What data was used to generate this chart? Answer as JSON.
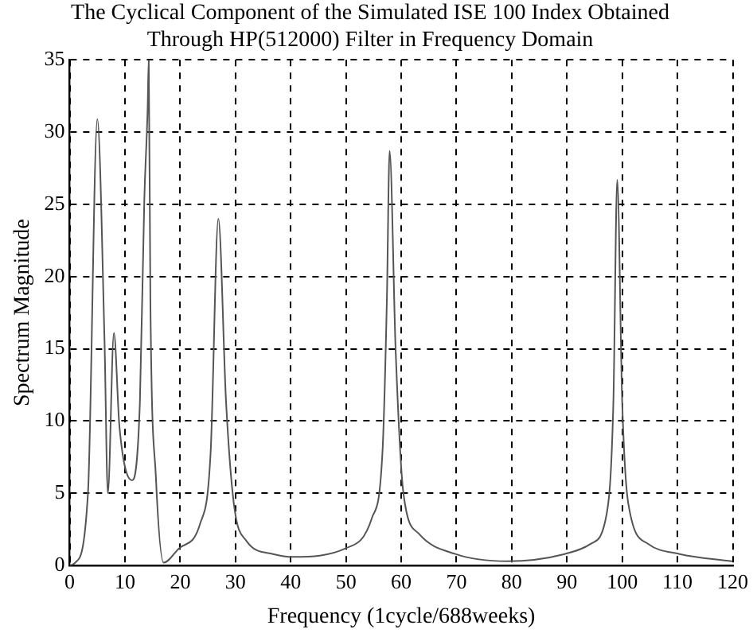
{
  "chart_data": {
    "type": "line",
    "title": "The Cyclical Component of the Simulated ISE 100 Index Obtained\nThrough HP(512000) Filter in Frequency Domain",
    "xlabel": "Frequency (1cycle/688weeks)",
    "ylabel": "Spectrum Magnitude",
    "x": [
      0,
      1,
      3.3,
      5.0,
      6.3,
      6.9,
      8.0,
      9.0,
      11.3,
      12.7,
      13.5,
      14.1,
      14.3,
      14.6,
      15.6,
      17.0,
      19.8,
      23.6,
      25.5,
      26.9,
      28.3,
      29.7,
      32,
      36.8,
      40.5,
      50,
      54.7,
      56.6,
      57.4,
      57.9,
      59.0,
      60.4,
      63.2,
      69.8,
      79.2,
      89.6,
      94.3,
      97.2,
      98.4,
      99.1,
      100,
      101.1,
      104.7,
      110.4,
      119.8
    ],
    "series": [
      {
        "color": "#555555",
        "values": [
          0,
          0.2,
          5,
          30.9,
          15.5,
          5.0,
          16.1,
          9.6,
          5.9,
          11.3,
          25.3,
          31.6,
          35,
          18.3,
          6.1,
          0.2,
          1.2,
          2.9,
          7.8,
          24,
          11.3,
          4.3,
          1.7,
          0.8,
          0.6,
          1.2,
          3.3,
          7.8,
          18.3,
          28.7,
          14.8,
          5.0,
          2.2,
          0.8,
          0.3,
          0.8,
          1.5,
          3.6,
          11.3,
          26.7,
          11.3,
          4.3,
          1.5,
          0.8,
          0.3
        ]
      }
    ],
    "xlim": [
      0,
      120
    ],
    "xticks": [
      0,
      10,
      20,
      30,
      40,
      50,
      60,
      70,
      80,
      90,
      100,
      110,
      120
    ],
    "ylim": [
      0,
      35
    ],
    "yticks": [
      0,
      5,
      10,
      15,
      20,
      25,
      30,
      35
    ],
    "grid": true,
    "legend": false,
    "marker": "none",
    "line_style": "solid"
  }
}
